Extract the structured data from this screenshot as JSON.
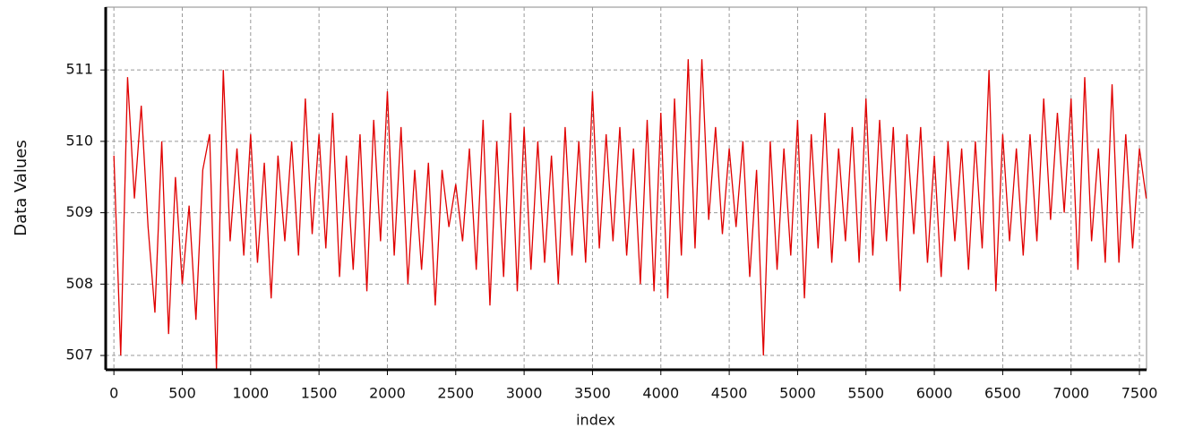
{
  "chart_data": {
    "type": "line",
    "x_label": "index",
    "y_label": "Data Values",
    "x": [
      0,
      50,
      100,
      150,
      200,
      250,
      300,
      350,
      400,
      450,
      500,
      550,
      600,
      650,
      700,
      750,
      800,
      850,
      900,
      950,
      1000,
      1050,
      1100,
      1150,
      1200,
      1250,
      1300,
      1350,
      1400,
      1450,
      1500,
      1550,
      1600,
      1650,
      1700,
      1750,
      1800,
      1850,
      1900,
      1950,
      2000,
      2050,
      2100,
      2150,
      2200,
      2250,
      2300,
      2350,
      2400,
      2450,
      2500,
      2550,
      2600,
      2650,
      2700,
      2750,
      2800,
      2850,
      2900,
      2950,
      3000,
      3050,
      3100,
      3150,
      3200,
      3250,
      3300,
      3350,
      3400,
      3450,
      3500,
      3550,
      3600,
      3650,
      3700,
      3750,
      3800,
      3850,
      3900,
      3950,
      4000,
      4050,
      4100,
      4150,
      4200,
      4250,
      4300,
      4350,
      4400,
      4450,
      4500,
      4550,
      4600,
      4650,
      4700,
      4750,
      4800,
      4850,
      4900,
      4950,
      5000,
      5050,
      5100,
      5150,
      5200,
      5250,
      5300,
      5350,
      5400,
      5450,
      5500,
      5550,
      5600,
      5650,
      5700,
      5750,
      5800,
      5850,
      5900,
      5950,
      6000,
      6050,
      6100,
      6150,
      6200,
      6250,
      6300,
      6350,
      6400,
      6450,
      6500,
      6550,
      6600,
      6650,
      6700,
      6750,
      6800,
      6850,
      6900,
      6950,
      7000,
      7050,
      7100,
      7150,
      7200,
      7250,
      7300,
      7350,
      7400,
      7450,
      7500,
      7550
    ],
    "values": [
      509.8,
      507.0,
      510.9,
      509.2,
      510.5,
      508.8,
      507.6,
      510.0,
      507.3,
      509.5,
      508.0,
      509.1,
      507.5,
      509.6,
      510.1,
      506.8,
      511.0,
      508.6,
      509.9,
      508.4,
      510.1,
      508.3,
      509.7,
      507.8,
      509.8,
      508.6,
      510.0,
      508.4,
      510.6,
      508.7,
      510.1,
      508.5,
      510.4,
      508.1,
      509.8,
      508.2,
      510.1,
      507.9,
      510.3,
      508.6,
      510.7,
      508.4,
      510.2,
      508.0,
      509.6,
      508.2,
      509.7,
      507.7,
      509.6,
      508.8,
      509.4,
      508.6,
      509.9,
      508.2,
      510.3,
      507.7,
      510.0,
      508.1,
      510.4,
      507.9,
      510.2,
      508.2,
      510.0,
      508.3,
      509.8,
      508.0,
      510.2,
      508.4,
      510.0,
      508.3,
      510.7,
      508.5,
      510.1,
      508.6,
      510.2,
      508.4,
      509.9,
      508.0,
      510.3,
      507.9,
      510.4,
      507.8,
      510.6,
      508.4,
      511.15,
      508.5,
      511.15,
      508.9,
      510.2,
      508.7,
      509.9,
      508.8,
      510.0,
      508.1,
      509.6,
      507.0,
      510.0,
      508.2,
      509.9,
      508.4,
      510.3,
      507.8,
      510.1,
      508.5,
      510.4,
      508.3,
      509.9,
      508.6,
      510.2,
      508.3,
      510.6,
      508.4,
      510.3,
      508.6,
      510.2,
      507.9,
      510.1,
      508.7,
      510.2,
      508.3,
      509.8,
      508.1,
      510.0,
      508.6,
      509.9,
      508.2,
      510.0,
      508.5,
      511.0,
      507.9,
      510.1,
      508.6,
      509.9,
      508.4,
      510.1,
      508.6,
      510.6,
      508.9,
      510.4,
      509.0,
      510.6,
      508.2,
      510.9,
      508.6,
      509.9,
      508.3,
      510.8,
      508.3,
      510.1,
      508.5,
      509.9,
      509.2
    ],
    "color": "#e00000",
    "xlim": [
      -60,
      7552
    ],
    "ylim": [
      506.8,
      511.88
    ],
    "xticks": [
      0,
      500,
      1000,
      1500,
      2000,
      2500,
      3000,
      3500,
      4000,
      4500,
      5000,
      5500,
      6000,
      6500,
      7000,
      7500
    ],
    "yticks": [
      507,
      508,
      509,
      510,
      511
    ],
    "grid": true
  }
}
